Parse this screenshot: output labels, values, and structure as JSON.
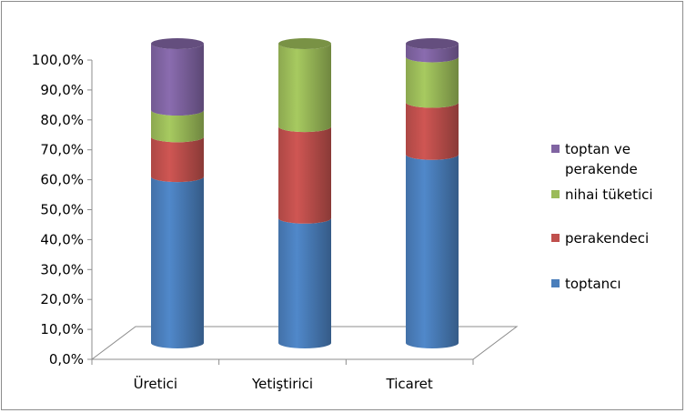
{
  "chart_data": {
    "type": "bar",
    "stacked": true,
    "style": "3d-cylinder",
    "categories": [
      "Üretici",
      "Yetiştirici",
      "Ticaret"
    ],
    "series": [
      {
        "name": "toptancı",
        "values": [
          55.6,
          41.7,
          63.0
        ],
        "color": "#4a7ebb"
      },
      {
        "name": "perakendeci",
        "values": [
          13.3,
          30.6,
          17.4
        ],
        "color": "#c0504d"
      },
      {
        "name": "nihai tüketici",
        "values": [
          8.9,
          27.7,
          15.2
        ],
        "color": "#9bbb59"
      },
      {
        "name": "toptan ve perakende",
        "values": [
          22.2,
          0.0,
          4.4
        ],
        "color": "#8064a2"
      }
    ],
    "yticks": [
      "0,0%",
      "10,0%",
      "20,0%",
      "30,0%",
      "40,0%",
      "50,0%",
      "60,0%",
      "70,0%",
      "80,0%",
      "90,0%",
      "100,0%"
    ],
    "ylim": [
      0,
      100
    ],
    "legend": {
      "position": "right",
      "entries": [
        {
          "lines": [
            "toptan ve",
            "perakende"
          ],
          "series": "toptan ve perakende"
        },
        {
          "lines": [
            "nihai tüketici"
          ],
          "series": "nihai tüketici"
        },
        {
          "lines": [
            "perakendeci"
          ],
          "series": "perakendeci"
        },
        {
          "lines": [
            "toptancı"
          ],
          "series": "toptancı"
        }
      ]
    },
    "grid": false
  }
}
